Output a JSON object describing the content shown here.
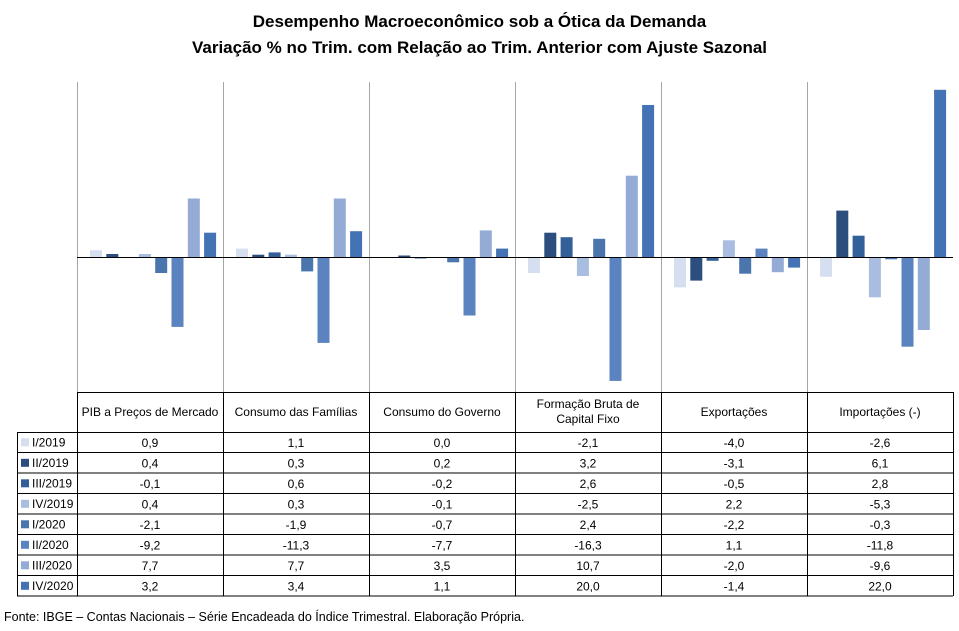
{
  "title": "Desempenho Macroeconômico  sob a Ótica da Demanda",
  "subtitle": "Variação % no Trim. com Relação ao Trim. Anterior com Ajuste Sazonal",
  "source": "Fonte: IBGE – Contas Nacionais – Série Encadeada do Índice Trimestral. Elaboração Própria.",
  "colors": {
    "series": [
      "#d6dff0",
      "#2b4e7e",
      "#34609a",
      "#a9bde0",
      "#4a76ad",
      "#5a83bf",
      "#94abd6",
      "#4373b5"
    ]
  },
  "chart_data": {
    "type": "bar",
    "title": "Desempenho Macroeconômico  sob a Ótica da Demanda",
    "subtitle": "Variação % no Trim. com Relação ao Trim. Anterior com Ajuste Sazonal",
    "categories": [
      "PIB a Preços de Mercado",
      "Consumo das Famílias",
      "Consumo do Governo",
      "Formação Bruta de Capital Fixo",
      "Exportações",
      "Importações (-)"
    ],
    "series": [
      {
        "name": "I/2019",
        "values": [
          0.9,
          1.1,
          0.0,
          -2.1,
          -4.0,
          -2.6
        ],
        "labels": [
          "0,9",
          "1,1",
          "0,0",
          "-2,1",
          "-4,0",
          "-2,6"
        ]
      },
      {
        "name": "II/2019",
        "values": [
          0.4,
          0.3,
          0.2,
          3.2,
          -3.1,
          6.1
        ],
        "labels": [
          "0,4",
          "0,3",
          "0,2",
          "3,2",
          "-3,1",
          "6,1"
        ]
      },
      {
        "name": "III/2019",
        "values": [
          -0.1,
          0.6,
          -0.2,
          2.6,
          -0.5,
          2.8
        ],
        "labels": [
          "-0,1",
          "0,6",
          "-0,2",
          "2,6",
          "-0,5",
          "2,8"
        ]
      },
      {
        "name": "IV/2019",
        "values": [
          0.4,
          0.3,
          -0.1,
          -2.5,
          2.2,
          -5.3
        ],
        "labels": [
          "0,4",
          "0,3",
          "-0,1",
          "-2,5",
          "2,2",
          "-5,3"
        ]
      },
      {
        "name": "I/2020",
        "values": [
          -2.1,
          -1.9,
          -0.7,
          2.4,
          -2.2,
          -0.3
        ],
        "labels": [
          "-2,1",
          "-1,9",
          "-0,7",
          "2,4",
          "-2,2",
          "-0,3"
        ]
      },
      {
        "name": "II/2020",
        "values": [
          -9.2,
          -11.3,
          -7.7,
          -16.3,
          1.1,
          -11.8
        ],
        "labels": [
          "-9,2",
          "-11,3",
          "-7,7",
          "-16,3",
          "1,1",
          "-11,8"
        ]
      },
      {
        "name": "III/2020",
        "values": [
          7.7,
          7.7,
          3.5,
          10.7,
          -2.0,
          -9.6
        ],
        "labels": [
          "7,7",
          "7,7",
          "3,5",
          "10,7",
          "-2,0",
          "-9,6"
        ]
      },
      {
        "name": "IV/2020",
        "values": [
          3.2,
          3.4,
          1.1,
          20.0,
          -1.4,
          22.0
        ],
        "labels": [
          "3,2",
          "3,4",
          "1,1",
          "20,0",
          "-1,4",
          "22,0"
        ]
      }
    ],
    "ylim": [
      -17,
      23
    ],
    "grid": false,
    "legend": "data-table"
  }
}
